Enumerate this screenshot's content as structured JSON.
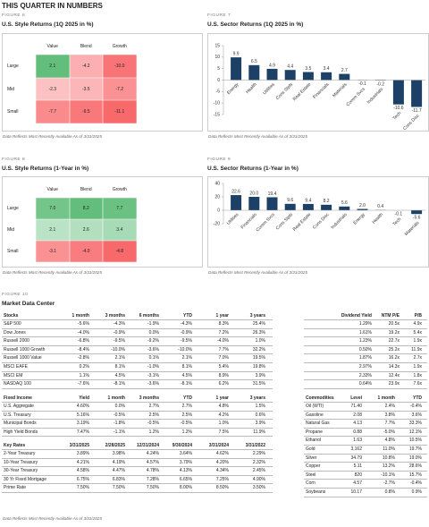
{
  "header": "THIS QUARTER IN NUMBERS",
  "chart_data": [
    {
      "type": "heatmap",
      "label": "FIGURE 6",
      "title": "U.S. Style Returns (1Q 2025 in %)",
      "x_categories": [
        "Value",
        "Blend",
        "Growth"
      ],
      "y_categories": [
        "Large",
        "Mid",
        "Small"
      ],
      "values": [
        [
          2.1,
          -4.2,
          -10.0
        ],
        [
          -2.3,
          -3.5,
          -7.2
        ],
        [
          -7.7,
          -9.5,
          -11.1
        ]
      ],
      "value_labels": [
        [
          "2.1",
          "-4.2",
          "-10.0"
        ],
        [
          "-2.3",
          "-3.5",
          "-7.2"
        ],
        [
          "-7.7",
          "-9.5",
          "-11.1"
        ]
      ],
      "positive_color": "#63be7b",
      "negative_color": "#f8696b",
      "note": "Data Reflects Most Recently Available As of 3/31/2025"
    },
    {
      "type": "bar",
      "label": "FIGURE 7",
      "title": "U.S. Sector Returns (1Q 2025 in %)",
      "categories": [
        "Energy",
        "Health",
        "Utilities",
        "Cons Stpls",
        "Real Estate",
        "Financials",
        "Materials",
        "Comm Svcs",
        "Industrials",
        "Tech",
        "Cons Disc"
      ],
      "values": [
        9.9,
        6.5,
        4.9,
        4.4,
        3.5,
        3.4,
        2.7,
        -0.1,
        -0.2,
        -10.6,
        -11.7
      ],
      "value_labels": [
        "9.9",
        "6.5",
        "4.9",
        "4.4",
        "3.5",
        "3.4",
        "2.7",
        "-0.1",
        "-0.2",
        "-10.6",
        "-11.7"
      ],
      "color": "#1d4166",
      "ylim": [
        -15,
        15
      ],
      "yticks": [
        15,
        10,
        5,
        0,
        -5,
        -10,
        -15
      ],
      "note": "Data Reflects Most Recently Available As of 3/31/2025"
    },
    {
      "type": "heatmap",
      "label": "FIGURE 8",
      "title": "U.S. Style Returns (1-Year in %)",
      "x_categories": [
        "Value",
        "Blend",
        "Growth"
      ],
      "y_categories": [
        "Large",
        "Mid",
        "Small"
      ],
      "values": [
        [
          7.0,
          8.2,
          7.7
        ],
        [
          2.1,
          2.6,
          3.4
        ],
        [
          -3.1,
          -4.0,
          -4.8
        ]
      ],
      "value_labels": [
        [
          "7.0",
          "8.2",
          "7.7"
        ],
        [
          "2.1",
          "2.6",
          "3.4"
        ],
        [
          "-3.1",
          "-4.0",
          "-4.8"
        ]
      ],
      "positive_color": "#63be7b",
      "negative_color": "#f8696b",
      "note": "Data Reflects Most Recently Available As of 3/31/2025"
    },
    {
      "type": "bar",
      "label": "FIGURE 9",
      "title": "U.S. Sector Returns (1-Year in %)",
      "categories": [
        "Utilities",
        "Financials",
        "Comm Svcs",
        "Cons Stpls",
        "Real Estate",
        "Cons Disc",
        "Industrials",
        "Energy",
        "Health",
        "Tech",
        "Materials"
      ],
      "values": [
        22.6,
        20.0,
        19.4,
        9.6,
        9.4,
        8.2,
        5.6,
        2.0,
        0.4,
        -0.1,
        -5.6
      ],
      "value_labels": [
        "22.6",
        "20.0",
        "19.4",
        "9.6",
        "9.4",
        "8.2",
        "5.6",
        "2.0",
        "0.4",
        "-0.1",
        "-5.6"
      ],
      "color": "#1d4166",
      "ylim": [
        -20,
        40
      ],
      "yticks": [
        40,
        20,
        0,
        -20
      ],
      "note": "Data Reflects Most Recently Available As of 3/31/2025"
    }
  ],
  "market_data": {
    "label": "FIGURE 10",
    "title": "Market Data Center",
    "stocks": {
      "header": [
        "Stocks",
        "1 month",
        "3 months",
        "6 months",
        "YTD",
        "1 year",
        "3 years",
        "Dividend Yield",
        "NTM P/E",
        "P/B"
      ],
      "rows": [
        {
          "name": "S&P 500",
          "values": [
            "-5.6%",
            "-4.3%",
            "-1.9%",
            "-4.3%",
            "8.3%",
            "25.4%",
            "1.29%",
            "20.5x",
            "4.9x"
          ]
        },
        {
          "name": "Dow Jones",
          "values": [
            "-4.0%",
            "-0.9%",
            "0.0%",
            "-0.9%",
            "7.2%",
            "26.3%",
            "1.61%",
            "19.2x",
            "5.4x"
          ]
        },
        {
          "name": "Russell 2000",
          "values": [
            "-6.8%",
            "-9.5%",
            "-9.2%",
            "-9.5%",
            "-4.0%",
            "1.0%",
            "1.23%",
            "22.7x",
            "1.9x"
          ]
        },
        {
          "name": "Russell 1000 Growth",
          "values": [
            "-8.4%",
            "-10.0%",
            "-3.6%",
            "-10.0%",
            "7.7%",
            "32.2%",
            "0.50%",
            "25.2x",
            "11.9x"
          ]
        },
        {
          "name": "Russell 1000 Value",
          "values": [
            "-2.8%",
            "2.1%",
            "0.1%",
            "2.1%",
            "7.0%",
            "19.5%",
            "1.87%",
            "16.2x",
            "2.7x"
          ]
        },
        {
          "name": "MSCI EAFE",
          "values": [
            "0.2%",
            "8.1%",
            "-1.0%",
            "8.1%",
            "5.4%",
            "19.8%",
            "2.97%",
            "14.3x",
            "1.9x"
          ]
        },
        {
          "name": "MSCI EM",
          "values": [
            "1.1%",
            "4.5%",
            "-3.1%",
            "4.5%",
            "8.9%",
            "3.9%",
            "2.33%",
            "12.4x",
            "1.8x"
          ]
        },
        {
          "name": "NASDAQ 100",
          "values": [
            "-7.6%",
            "-8.1%",
            "-3.6%",
            "-8.1%",
            "6.2%",
            "31.5%",
            "0.64%",
            "23.9x",
            "7.6x"
          ]
        }
      ]
    },
    "fixed_income": {
      "header": [
        "Fixed Income",
        "Yield",
        "1 month",
        "3 months",
        "YTD",
        "1 year",
        "3 years"
      ],
      "rows": [
        {
          "name": "U.S. Aggregate",
          "values": [
            "4.60%",
            "0.0%",
            "2.7%",
            "2.7%",
            "4.8%",
            "1.5%"
          ]
        },
        {
          "name": "U.S. Treasury",
          "values": [
            "5.16%",
            "-0.5%",
            "2.5%",
            "2.5%",
            "4.2%",
            "0.6%"
          ]
        },
        {
          "name": "Municipal Bonds",
          "values": [
            "3.19%",
            "-1.8%",
            "-0.5%",
            "-0.5%",
            "1.0%",
            "3.9%"
          ]
        },
        {
          "name": "High Yield Bonds",
          "values": [
            "7.47%",
            "-1.1%",
            "1.2%",
            "1.2%",
            "7.5%",
            "11.9%"
          ]
        }
      ]
    },
    "key_rates": {
      "header": [
        "Key Rates",
        "3/31/2025",
        "2/28/2025",
        "12/31/2024",
        "9/30/2024",
        "3/31/2024",
        "3/31/2022"
      ],
      "rows": [
        {
          "name": "2-Year Treasury",
          "values": [
            "3.89%",
            "3.98%",
            "4.24%",
            "3.64%",
            "4.62%",
            "2.29%"
          ]
        },
        {
          "name": "10-Year Treasury",
          "values": [
            "4.21%",
            "4.19%",
            "4.57%",
            "3.79%",
            "4.20%",
            "2.32%"
          ]
        },
        {
          "name": "30-Year Treasury",
          "values": [
            "4.58%",
            "4.47%",
            "4.78%",
            "4.13%",
            "4.34%",
            "2.45%"
          ]
        },
        {
          "name": "30 Yr Fixed Mortgage",
          "values": [
            "6.75%",
            "6.83%",
            "7.28%",
            "6.65%",
            "7.25%",
            "4.90%"
          ]
        },
        {
          "name": "Prime Rate",
          "values": [
            "7.50%",
            "7.50%",
            "7.50%",
            "8.00%",
            "8.50%",
            "3.50%"
          ]
        }
      ]
    },
    "commodities": {
      "header": [
        "Commodities",
        "Level",
        "1 month",
        "YTD"
      ],
      "rows": [
        {
          "name": "Oil (WTI)",
          "values": [
            "71.40",
            "2.4%",
            "-0.4%"
          ]
        },
        {
          "name": "Gasoline",
          "values": [
            "2.08",
            "3.8%",
            "3.6%"
          ]
        },
        {
          "name": "Natural Gas",
          "values": [
            "4.13",
            "7.7%",
            "33.3%"
          ]
        },
        {
          "name": "Propane",
          "values": [
            "0.88",
            "-5.0%",
            "12.1%"
          ]
        },
        {
          "name": "Ethanol",
          "values": [
            "1.63",
            "4.8%",
            "10.5%"
          ]
        },
        {
          "name": "Gold",
          "values": [
            "3,162",
            "11.0%",
            "19.7%"
          ]
        },
        {
          "name": "Silver",
          "values": [
            "34.79",
            "10.8%",
            "19.0%"
          ]
        },
        {
          "name": "Copper",
          "values": [
            "5.11",
            "13.2%",
            "28.6%"
          ]
        },
        {
          "name": "Steel",
          "values": [
            "820",
            "-10.1%",
            "15.7%"
          ]
        },
        {
          "name": "Corn",
          "values": [
            "4.57",
            "-2.7%",
            "-0.4%"
          ]
        },
        {
          "name": "Soybeans",
          "values": [
            "10.17",
            "0.8%",
            "0.9%"
          ]
        }
      ]
    },
    "note": "Data Reflects Most Recently Available As of 3/31/2025"
  }
}
